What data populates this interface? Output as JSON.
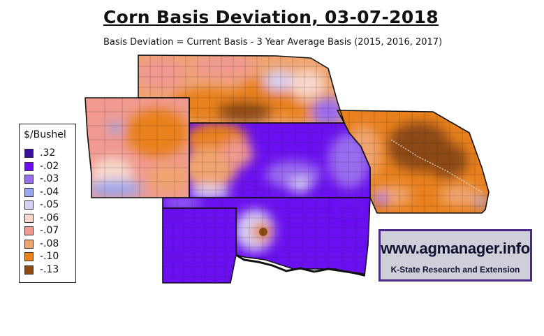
{
  "title": "Corn Basis Deviation, 03-07-2018",
  "subtitle": "Basis Deviation = Current Basis - 3 Year Average Basis (2015, 2016, 2017)",
  "legend": {
    "title": "$/Bushel",
    "items": [
      {
        "label": ".32",
        "color": "#3b0f9e"
      },
      {
        "label": "-.02",
        "color": "#6a10f0"
      },
      {
        "label": "-.03",
        "color": "#9a6cf0"
      },
      {
        "label": "-.04",
        "color": "#9aa6ee"
      },
      {
        "label": "-.05",
        "color": "#d8d0f4"
      },
      {
        "label": "-.06",
        "color": "#f8d8cc"
      },
      {
        "label": "-.07",
        "color": "#f09a90"
      },
      {
        "label": "-.08",
        "color": "#f0a470"
      },
      {
        "label": "-.10",
        "color": "#e9811d"
      },
      {
        "label": "-.13",
        "color": "#8c4a14"
      }
    ]
  },
  "logo": {
    "url_text": "www.agmanager.info",
    "org_text": "K-State Research and Extension"
  },
  "colors": {
    "logo_border": "#4b2a86",
    "logo_bg": "#cfcfd9"
  }
}
